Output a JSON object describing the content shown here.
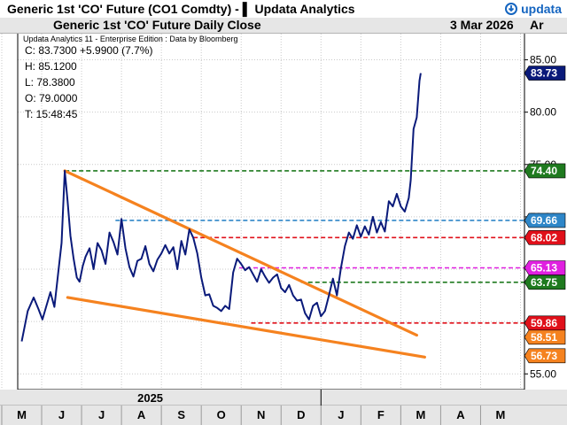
{
  "window": {
    "title": "Generic 1st 'CO' Future (CO1 Comdty) - ▌ Updata Analytics",
    "brand": "updata"
  },
  "header": {
    "chart_title": "Generic 1st 'CO' Future Daily Close",
    "date": "3 Mar 2026",
    "axis_unit": "Ar"
  },
  "info": {
    "attribution": "Updata Analytics 11 - Enterprise Edition : Data by Bloomberg",
    "close": "C: 83.7300  +5.9900 (7.7%)",
    "high": "H: 85.1200",
    "low": "L: 78.3800",
    "open": "O: 79.0000",
    "time": "T: 15:48:45"
  },
  "colors": {
    "price": "#0a1a7a",
    "trendline": "#f5821f",
    "green_level": "#1f7a1f",
    "blue_level": "#2e86c8",
    "red_level": "#e0101a",
    "magenta_level": "#e020e0",
    "last_price_tag": "#0a1a7a"
  },
  "chart_data": {
    "type": "line",
    "title": "Generic 1st 'CO' Future Daily Close",
    "ylim": [
      53.5,
      87.5
    ],
    "y_ticks": [
      55.0,
      60.0,
      65.0,
      70.0,
      75.0,
      80.0,
      85.0
    ],
    "y_tick_labels": [
      "55.00",
      "60.00",
      "65.00",
      "70.00",
      "75.00",
      "80.00",
      "85.00"
    ],
    "x_range": [
      -0.1,
      12.6
    ],
    "months": [
      "M",
      "J",
      "J",
      "A",
      "S",
      "O",
      "N",
      "D",
      "J",
      "F",
      "M",
      "A",
      "M"
    ],
    "year_label": "2025",
    "year_boundary": 8,
    "grid": true,
    "series": [
      {
        "name": "CO1 Comdty",
        "x": [
          0.0,
          0.15,
          0.3,
          0.42,
          0.52,
          0.62,
          0.72,
          0.82,
          0.92,
          1.0,
          1.08,
          1.15,
          1.22,
          1.3,
          1.38,
          1.45,
          1.53,
          1.6,
          1.7,
          1.8,
          1.9,
          2.0,
          2.1,
          2.2,
          2.3,
          2.4,
          2.5,
          2.6,
          2.7,
          2.8,
          2.9,
          3.0,
          3.1,
          3.2,
          3.3,
          3.4,
          3.5,
          3.6,
          3.7,
          3.8,
          3.9,
          4.0,
          4.1,
          4.2,
          4.3,
          4.4,
          4.5,
          4.6,
          4.7,
          4.8,
          4.9,
          5.0,
          5.1,
          5.2,
          5.3,
          5.4,
          5.5,
          5.6,
          5.7,
          5.8,
          5.9,
          6.0,
          6.1,
          6.2,
          6.3,
          6.4,
          6.5,
          6.6,
          6.7,
          6.8,
          6.9,
          7.0,
          7.1,
          7.2,
          7.3,
          7.4,
          7.5,
          7.6,
          7.7,
          7.8,
          7.9,
          8.0,
          8.1,
          8.2,
          8.3,
          8.4,
          8.5,
          8.6,
          8.7,
          8.8,
          8.9,
          9.0,
          9.1,
          9.2,
          9.3,
          9.4,
          9.5,
          9.6,
          9.7,
          9.75,
          9.82,
          9.9,
          9.97,
          10.0
        ],
        "values": [
          58.1,
          61.0,
          62.3,
          61.2,
          60.2,
          61.5,
          62.8,
          61.4,
          64.8,
          67.5,
          74.4,
          71.5,
          68.2,
          66.0,
          64.2,
          63.8,
          65.3,
          66.2,
          67.0,
          65.0,
          67.5,
          66.8,
          65.5,
          68.5,
          67.6,
          66.4,
          69.8,
          67.0,
          65.2,
          64.3,
          65.8,
          66.0,
          67.2,
          65.5,
          64.8,
          65.9,
          66.5,
          67.3,
          66.5,
          67.1,
          65.0,
          67.7,
          66.4,
          68.8,
          68.0,
          66.5,
          64.2,
          62.5,
          62.6,
          61.5,
          61.3,
          61.0,
          61.5,
          61.2,
          64.7,
          66.0,
          65.5,
          64.9,
          65.2,
          64.5,
          63.8,
          65.0,
          64.3,
          63.7,
          64.2,
          64.5,
          63.2,
          62.8,
          63.5,
          62.5,
          62.0,
          62.1,
          60.8,
          60.2,
          61.5,
          61.8,
          60.5,
          61.0,
          62.5,
          64.1,
          62.5,
          65.1,
          67.2,
          68.5,
          67.9,
          69.2,
          68.1,
          69.1,
          68.3,
          70.0,
          68.5,
          69.5,
          68.6,
          71.5,
          71.0,
          72.2,
          71.0,
          70.5,
          71.8,
          73.5,
          78.4,
          79.5,
          83.0,
          83.73
        ]
      }
    ],
    "trendlines": [
      {
        "name": "upper",
        "x": [
          1.08,
          9.9
        ],
        "values": [
          74.4,
          58.7
        ]
      },
      {
        "name": "lower",
        "x": [
          1.15,
          10.1
        ],
        "values": [
          62.3,
          56.6
        ]
      }
    ],
    "levels": [
      {
        "value": 74.4,
        "label": "74.40",
        "color": "#1f7a1f",
        "x_start": 1.08
      },
      {
        "value": 69.66,
        "label": "69.66",
        "color": "#2e86c8",
        "x_start": 2.35
      },
      {
        "value": 68.02,
        "label": "68.02",
        "color": "#e0101a",
        "x_start": 4.3
      },
      {
        "value": 65.13,
        "label": "65.13",
        "color": "#e020e0",
        "x_start": 5.45
      },
      {
        "value": 63.75,
        "label": "63.75",
        "color": "#1f7a1f",
        "x_start": 7.0
      },
      {
        "value": 59.86,
        "label": "59.86",
        "color": "#e0101a",
        "x_start": 5.75
      }
    ],
    "tags": [
      {
        "value": 83.73,
        "label": "83.73",
        "color": "#0a1a7a"
      },
      {
        "value": 58.51,
        "label": "58.51",
        "color": "#f5821f"
      },
      {
        "value": 56.73,
        "label": "56.73",
        "color": "#f5821f"
      }
    ]
  }
}
